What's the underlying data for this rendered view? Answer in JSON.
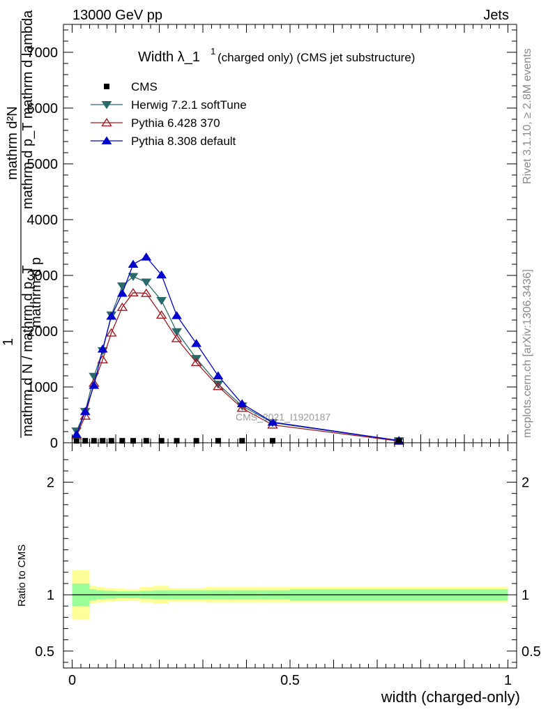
{
  "header": {
    "energy": "13000 GeV pp",
    "category": "Jets"
  },
  "title": {
    "main": "Width λ_1",
    "sup": "1",
    "sub": "(charged only) (CMS jet substructure)"
  },
  "side_labels": {
    "rivet": "Rivet 3.1.10, ≥ 2.8M events",
    "mcplots": "mcplots.cern.ch [arXiv:1306.3436]"
  },
  "watermark": "CMS_2021_I1920187",
  "y_axis": {
    "numerator": "mathrm d²N",
    "numerator_2": "mathrm d p_T mathrm d lambda",
    "one": "1",
    "denominator": "mathrm d N / mathrm d p_T",
    "label_tail": "mathrm d p"
  },
  "ratio_ylabel": "Ratio to CMS",
  "xlabel": "width (charged-only)",
  "legend": [
    {
      "label": "CMS",
      "marker": "square",
      "color": "#000000"
    },
    {
      "label": "Herwig 7.2.1 softTune",
      "marker": "triangle-down",
      "color": "#2a6a6a"
    },
    {
      "label": "Pythia 6.428 370",
      "marker": "triangle-open",
      "color": "#a31a24"
    },
    {
      "label": "Pythia 8.308 default",
      "marker": "triangle-up",
      "color": "#0000cc"
    }
  ],
  "chart_data": [
    {
      "type": "line",
      "xlim": [
        -0.02,
        1.02
      ],
      "ylim": [
        0,
        7500
      ],
      "yticks": [
        {
          "value": 1000,
          "label": "1000"
        },
        {
          "value": 2000,
          "label": "2000"
        },
        {
          "value": 3000,
          "label": "3000"
        },
        {
          "value": 4000,
          "label": "4000"
        },
        {
          "value": 5000,
          "label": "5000"
        },
        {
          "value": 6000,
          "label": "6000"
        },
        {
          "value": 7000,
          "label": "7000"
        },
        {
          "value": 0,
          "label": "0"
        }
      ],
      "cms": {
        "name": "CMS",
        "x": [
          0.01,
          0.03,
          0.05,
          0.07,
          0.09,
          0.115,
          0.14,
          0.17,
          0.205,
          0.24,
          0.285,
          0.335,
          0.39,
          0.46,
          0.75
        ],
        "y": [
          10,
          10,
          10,
          10,
          10,
          10,
          10,
          10,
          10,
          10,
          10,
          10,
          10,
          10,
          10
        ]
      },
      "series": [
        {
          "name": "Herwig 7.2.1 softTune",
          "color": "#2a6a6a",
          "marker": "triangle-down",
          "x": [
            0.01,
            0.03,
            0.05,
            0.07,
            0.09,
            0.115,
            0.14,
            0.17,
            0.205,
            0.24,
            0.285,
            0.335,
            0.39,
            0.46,
            0.75
          ],
          "y": [
            210,
            560,
            1190,
            1650,
            2290,
            2810,
            2980,
            2880,
            2550,
            1990,
            1510,
            1050,
            660,
            360,
            35
          ]
        },
        {
          "name": "Pythia 6.428 370",
          "color": "#a31a24",
          "marker": "triangle-open",
          "x": [
            0.01,
            0.03,
            0.05,
            0.07,
            0.09,
            0.115,
            0.14,
            0.17,
            0.205,
            0.24,
            0.285,
            0.335,
            0.39,
            0.46,
            0.75
          ],
          "y": [
            130,
            480,
            1070,
            1490,
            1970,
            2430,
            2690,
            2680,
            2290,
            1870,
            1440,
            1010,
            620,
            320,
            30
          ]
        },
        {
          "name": "Pythia 8.308 default",
          "color": "#0000cc",
          "marker": "triangle-up",
          "x": [
            0.01,
            0.03,
            0.05,
            0.07,
            0.09,
            0.115,
            0.14,
            0.17,
            0.205,
            0.24,
            0.285,
            0.335,
            0.39,
            0.46,
            0.75
          ],
          "y": [
            150,
            560,
            1030,
            1680,
            2270,
            2680,
            3200,
            3330,
            3010,
            2280,
            1780,
            1200,
            700,
            370,
            40
          ]
        }
      ]
    },
    {
      "type": "area",
      "ylabel": "Ratio to CMS",
      "xlim": [
        -0.02,
        1.02
      ],
      "ylim": [
        0.35,
        2.35
      ],
      "yticks": [
        {
          "value": 0.5,
          "label": "0.5"
        },
        {
          "value": 1,
          "label": "1"
        },
        {
          "value": 2,
          "label": "2"
        }
      ],
      "xticks": [
        {
          "value": 0,
          "label": "0"
        },
        {
          "value": 0.5,
          "label": "0.5"
        },
        {
          "value": 1,
          "label": "1"
        }
      ],
      "bin_edges": [
        0,
        0.04,
        0.055,
        0.075,
        0.1,
        0.125,
        0.155,
        0.185,
        0.22,
        0.26,
        0.305,
        0.365,
        0.43,
        0.5,
        1.0
      ],
      "stat_err": [
        0.1,
        0.05,
        0.04,
        0.035,
        0.03,
        0.03,
        0.035,
        0.04,
        0.04,
        0.04,
        0.04,
        0.04,
        0.04,
        0.05,
        0.05
      ],
      "total_err": [
        0.22,
        0.08,
        0.07,
        0.06,
        0.055,
        0.05,
        0.07,
        0.08,
        0.06,
        0.06,
        0.07,
        0.07,
        0.07,
        0.07,
        0.1
      ]
    }
  ]
}
